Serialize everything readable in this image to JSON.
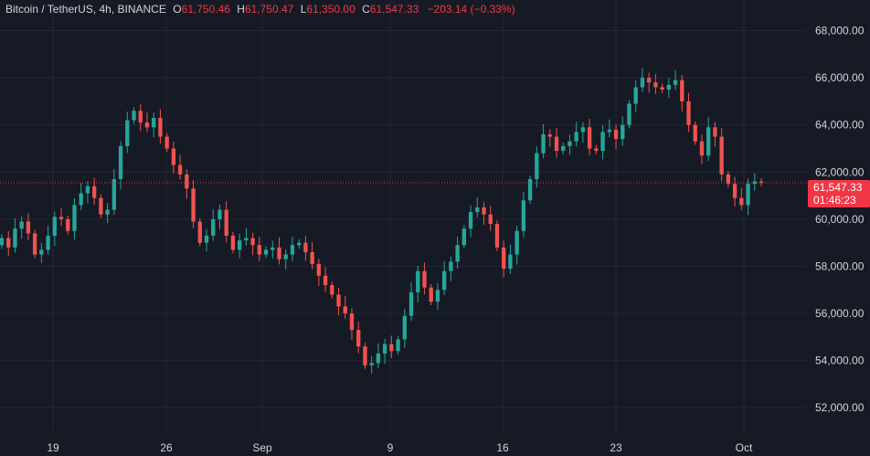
{
  "header": {
    "symbol": "Bitcoin / TetherUS, 4h, BINANCE",
    "open_label": "O",
    "open_value": "61,750.46",
    "high_label": "H",
    "high_value": "61,750.47",
    "low_label": "L",
    "low_value": "61,350.00",
    "close_label": "C",
    "close_value": "61,547.33",
    "change": "−203.14 (−0.33%)"
  },
  "colors": {
    "background": "#161a25",
    "grid": "#232734",
    "up": "#26a69a",
    "down": "#ef5350",
    "axis_text": "#d1d4dc",
    "price_line": "#f23645"
  },
  "current_price": {
    "label": "61,547.33",
    "countdown": "01:46:23",
    "value": 61547.33
  },
  "chart_data": {
    "type": "candlestick",
    "interval": "4h",
    "y_axis": {
      "ticks": [
        68000,
        66000,
        64000,
        62000,
        60000,
        58000,
        56000,
        54000,
        52000
      ],
      "tick_labels": [
        "68,000.00",
        "66,000.00",
        "64,000.00",
        "62,000.00",
        "60,000.00",
        "58,000.00",
        "56,000.00",
        "54,000.00",
        "52,000.00"
      ],
      "range": [
        51000,
        69300
      ],
      "position": "right"
    },
    "x_axis": {
      "tick_labels": [
        "19",
        "26",
        "Sep",
        "9",
        "16",
        "23",
        "Oct"
      ]
    },
    "grid": true,
    "series_close": [
      59200,
      58800,
      59600,
      59900,
      59400,
      58500,
      58700,
      59300,
      60100,
      60000,
      59500,
      60600,
      61100,
      61400,
      60900,
      60200,
      60400,
      61700,
      63100,
      64200,
      64600,
      64100,
      63900,
      64300,
      63500,
      63000,
      62300,
      61900,
      61300,
      59900,
      59000,
      59300,
      60000,
      60400,
      59300,
      58700,
      59100,
      59200,
      58900,
      58500,
      58700,
      58800,
      58300,
      58500,
      58900,
      59000,
      58600,
      58100,
      57600,
      57200,
      56800,
      56300,
      56000,
      55300,
      54600,
      53800,
      53900,
      54300,
      54700,
      54400,
      54900,
      55900,
      56900,
      57800,
      57100,
      56500,
      57000,
      57800,
      58200,
      58900,
      59600,
      60300,
      60500,
      60200,
      59800,
      58800,
      57900,
      58500,
      59500,
      60800,
      61700,
      62800,
      63600,
      63500,
      62900,
      63100,
      63300,
      63700,
      63900,
      63000,
      62900,
      63700,
      63800,
      63400,
      64000,
      64900,
      65600,
      66000,
      65800,
      65600,
      65500,
      65700,
      65900,
      65000,
      64000,
      63300,
      62700,
      63900,
      63500,
      61900,
      61500,
      60900,
      60600,
      61500,
      61600,
      61547
    ]
  }
}
